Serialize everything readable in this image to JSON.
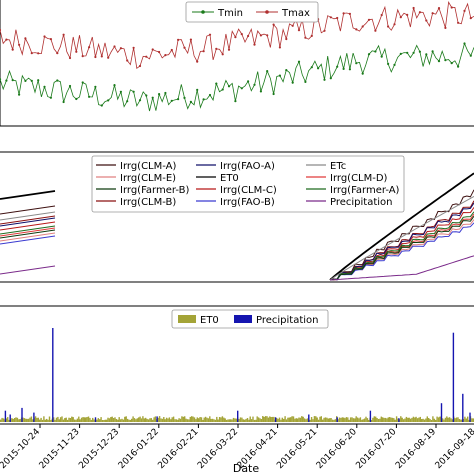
{
  "chart_data": [
    {
      "type": "line",
      "legend": {
        "placement": "top-center",
        "entries": [
          "Tmin",
          "Tmax"
        ]
      },
      "series": [
        {
          "name": "Tmin",
          "color": "#1a7a1a",
          "marker": "circle",
          "trend": [
            [
              0,
              4
            ],
            [
              0.15,
              2
            ],
            [
              0.3,
              0
            ],
            [
              0.45,
              2
            ],
            [
              0.6,
              5
            ],
            [
              0.75,
              9
            ],
            [
              0.9,
              10
            ],
            [
              1.0,
              10
            ]
          ]
        },
        {
          "name": "Tmax",
          "color": "#b03030",
          "marker": "circle",
          "trend": [
            [
              0,
              14
            ],
            [
              0.15,
              12
            ],
            [
              0.3,
              10
            ],
            [
              0.45,
              12
            ],
            [
              0.6,
              15
            ],
            [
              0.75,
              18
            ],
            [
              0.9,
              19
            ],
            [
              1.0,
              19
            ]
          ]
        }
      ],
      "grid": false
    },
    {
      "type": "line",
      "legend": {
        "placement": "top-center",
        "entries": [
          "Irrg(CLM-A)",
          "Irrg(CLM-E)",
          "Irrg(Farmer-B)",
          "Irrg(CLM-B)",
          "Irrg(FAO-A)",
          "ET0",
          "Irrg(CLM-C)",
          "Irrg(FAO-B)",
          "ETc",
          "Irrg(CLM-D)",
          "Irrg(Farmer-A)",
          "Precipitation"
        ]
      },
      "series": [
        {
          "name": "Irrg(CLM-A)",
          "color": "#3d1010",
          "end_value": 0.82
        },
        {
          "name": "Irrg(CLM-B)",
          "color": "#8a1010",
          "end_value": 0.72
        },
        {
          "name": "Irrg(CLM-C)",
          "color": "#b81818",
          "end_value": 0.66
        },
        {
          "name": "Irrg(CLM-D)",
          "color": "#e03a3a",
          "end_value": 0.6
        },
        {
          "name": "Irrg(CLM-E)",
          "color": "#e08080",
          "end_value": 0.55
        },
        {
          "name": "Irrg(FAO-A)",
          "color": "#10106a",
          "end_value": 0.7
        },
        {
          "name": "Irrg(FAO-B)",
          "color": "#3a3ad0",
          "end_value": 0.52
        },
        {
          "name": "Irrg(Farmer-A)",
          "color": "#1e6b1e",
          "end_value": 0.62
        },
        {
          "name": "Irrg(Farmer-B)",
          "color": "#0e3a0e",
          "end_value": 0.58
        },
        {
          "name": "ET0",
          "color": "#000000",
          "end_value": 0.97
        },
        {
          "name": "ETc",
          "color": "#8a8a8a",
          "end_value": 0.76
        },
        {
          "name": "Precipitation",
          "color": "#7a2a8a",
          "end_value": 0.22
        }
      ],
      "grid": false
    },
    {
      "type": "bar",
      "legend": {
        "placement": "top-center",
        "entries": [
          "ET0",
          "Precipitation"
        ]
      },
      "series": [
        {
          "name": "ET0",
          "color": "#a4a437",
          "typical_value": 0.06
        },
        {
          "name": "Precipitation",
          "color": "#1515b0",
          "events": [
            [
              0.01,
              0.12
            ],
            [
              0.02,
              0.08
            ],
            [
              0.045,
              0.15
            ],
            [
              0.07,
              0.1
            ],
            [
              0.11,
              1.0
            ],
            [
              0.2,
              0.05
            ],
            [
              0.33,
              0.06
            ],
            [
              0.5,
              0.12
            ],
            [
              0.58,
              0.05
            ],
            [
              0.65,
              0.08
            ],
            [
              0.71,
              0.05
            ],
            [
              0.78,
              0.12
            ],
            [
              0.84,
              0.04
            ],
            [
              0.93,
              0.2
            ],
            [
              0.955,
              0.95
            ],
            [
              0.975,
              0.3
            ],
            [
              0.99,
              0.1
            ]
          ]
        }
      ],
      "xlabel": "Date",
      "categories": [
        "2015-10-24",
        "2015-11-23",
        "2015-12-23",
        "2016-01-22",
        "2016-02-21",
        "2016-03-22",
        "2016-04-21",
        "2016-05-21",
        "2016-06-20",
        "2016-07-20",
        "2016-08-19",
        "2016-09-18"
      ],
      "grid": false
    }
  ]
}
